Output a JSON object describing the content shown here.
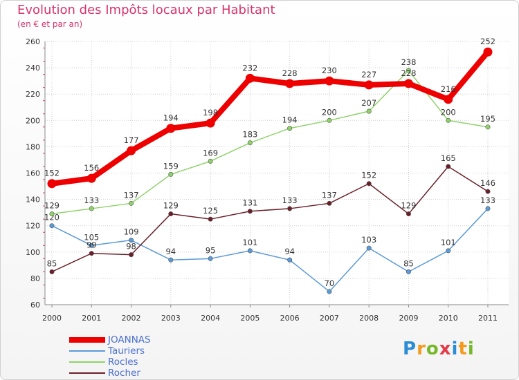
{
  "title": "Evolution des Impôts locaux par Habitant",
  "subtitle": "(en € et par an)",
  "logo": {
    "letters": [
      "P",
      "r",
      "o",
      "x",
      "i",
      "t",
      "i"
    ],
    "colors": [
      "#2a8bd6",
      "#f39a1e",
      "#77b82a",
      "#e23b4a",
      "#2a8bd6",
      "#f39a1e",
      "#77b82a"
    ]
  },
  "chart_data": {
    "type": "line",
    "title": "Evolution des Impôts locaux par Habitant",
    "subtitle": "(en € et par an)",
    "categories": [
      "2000",
      "2001",
      "2002",
      "2003",
      "2004",
      "2005",
      "2006",
      "2007",
      "2008",
      "2009",
      "2010",
      "2011"
    ],
    "ylim": [
      60,
      260
    ],
    "yticks": [
      60,
      80,
      100,
      120,
      140,
      160,
      180,
      200,
      220,
      240,
      260
    ],
    "grid": true,
    "legend_position": "bottom-left",
    "series": [
      {
        "name": "Tauriers",
        "color": "#5a9ad6",
        "values": [
          120,
          105,
          109,
          94,
          95,
          101,
          94,
          70,
          103,
          85,
          101,
          133
        ]
      },
      {
        "name": "Rocles",
        "color": "#8fd26a",
        "values": [
          129,
          133,
          137,
          159,
          169,
          183,
          194,
          200,
          207,
          238,
          200,
          195
        ]
      },
      {
        "name": "Rocher",
        "color": "#6b1e28",
        "values": [
          85,
          99,
          98,
          129,
          125,
          131,
          133,
          137,
          152,
          129,
          165,
          146
        ]
      },
      {
        "name": "JOANNAS",
        "color": "#ee0000",
        "values": [
          152,
          156,
          177,
          194,
          198,
          232,
          228,
          230,
          227,
          228,
          216,
          252
        ]
      }
    ],
    "legend_order": [
      "JOANNAS",
      "Tauriers",
      "Rocles",
      "Rocher"
    ]
  }
}
